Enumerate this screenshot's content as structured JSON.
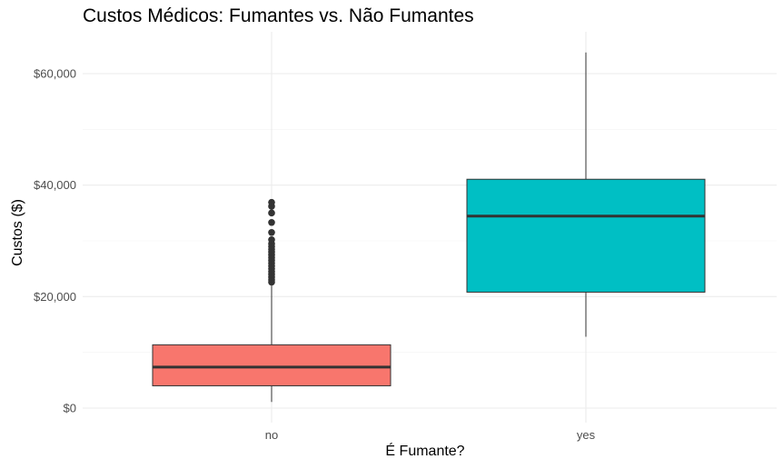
{
  "chart_data": {
    "type": "boxplot",
    "title": "Custos Médicos: Fumantes vs. Não Fumantes",
    "xlabel": "É Fumante?",
    "ylabel": "Custos ($)",
    "categories": [
      "no",
      "yes"
    ],
    "ylim": [
      0,
      66000
    ],
    "yticks": [
      0,
      20000,
      40000,
      60000
    ],
    "ytick_labels": [
      "$0",
      "$20,000",
      "$40,000",
      "$60,000"
    ],
    "grid": true,
    "legend": "none",
    "boxes": [
      {
        "category": "no",
        "color": "#F8766D",
        "whisker_low": 1100,
        "q1": 4000,
        "median": 7350,
        "q3": 11350,
        "whisker_high": 22400,
        "outliers": [
          22600,
          23000,
          23500,
          24000,
          24500,
          25000,
          25500,
          26000,
          26500,
          27000,
          27500,
          28000,
          28500,
          29000,
          29500,
          30200,
          31500,
          33300,
          35000,
          36200,
          36900
        ]
      },
      {
        "category": "yes",
        "color": "#00BFC4",
        "whisker_low": 12800,
        "q1": 20800,
        "median": 34450,
        "q3": 41050,
        "whisker_high": 63800,
        "outliers": []
      }
    ]
  }
}
